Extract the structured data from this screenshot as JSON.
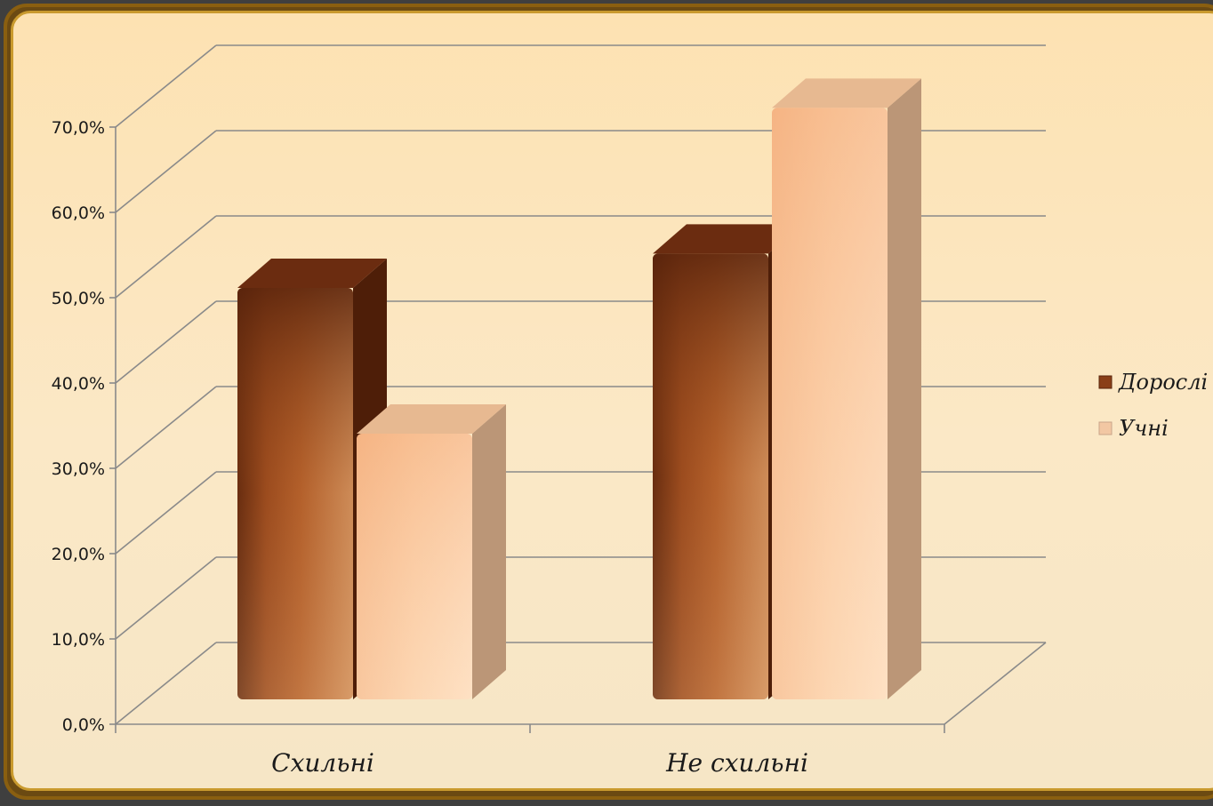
{
  "chart_data": {
    "type": "bar",
    "title": "",
    "xlabel": "",
    "ylabel": "",
    "categories": [
      "Схильні",
      "Не схильні"
    ],
    "series": [
      {
        "name": "Дорослі",
        "values": [
          48.0,
          52.0
        ],
        "color": "#8a3f18"
      },
      {
        "name": "Учні",
        "values": [
          31.0,
          69.0
        ],
        "color": "#f7c49a"
      }
    ],
    "ylim": [
      0,
      70
    ],
    "y_ticks": [
      "0,0%",
      "10,0%",
      "20,0%",
      "30,0%",
      "40,0%",
      "50,0%",
      "60,0%",
      "70,0%"
    ],
    "grid": true,
    "legend_position": "right",
    "style": "3d-bar"
  }
}
